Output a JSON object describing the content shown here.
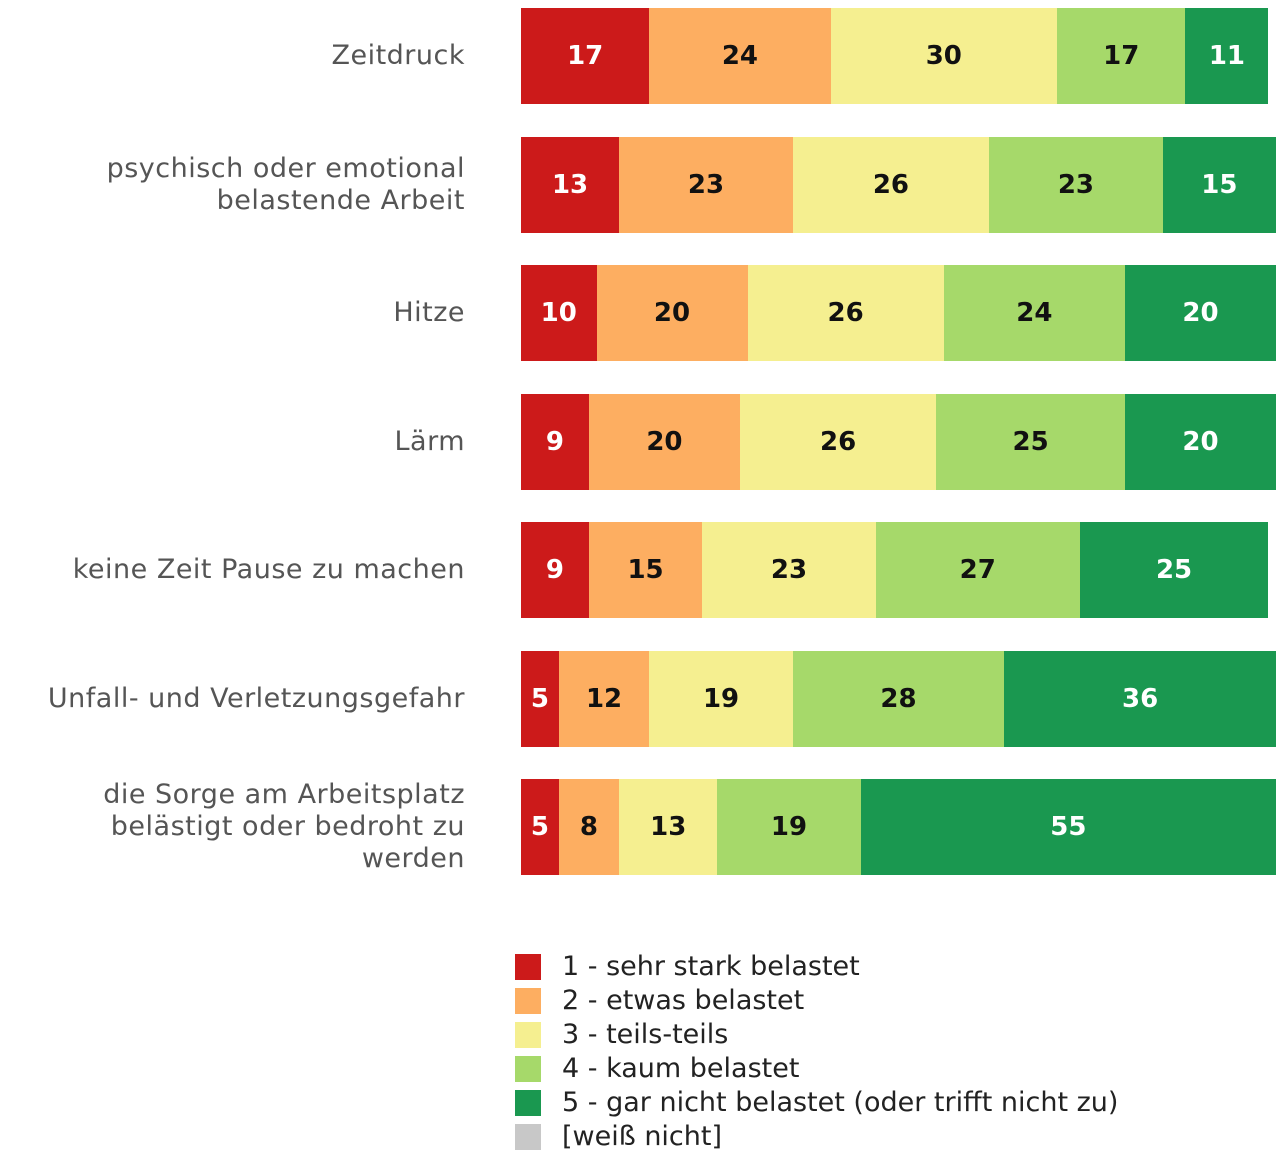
{
  "chart_data": {
    "type": "stacked_bar_horizontal",
    "categories": [
      "Zeitdruck",
      "psychisch oder emotional belastende Arbeit",
      "Hitze",
      "Lärm",
      "keine Zeit Pause zu machen",
      "Unfall- und Verletzungsgefahr",
      "die Sorge am Arbeitsplatz belästigt oder bedroht zu werden"
    ],
    "series": [
      {
        "name": "1 - sehr stark belastet",
        "color": "#cc1a1a",
        "values": [
          17,
          13,
          10,
          9,
          9,
          5,
          5
        ]
      },
      {
        "name": "2 - etwas belastet",
        "color": "#fdae61",
        "values": [
          24,
          23,
          20,
          20,
          15,
          12,
          8
        ]
      },
      {
        "name": "3 - teils-teils",
        "color": "#f5ef90",
        "values": [
          30,
          26,
          26,
          26,
          23,
          19,
          13
        ]
      },
      {
        "name": "4 - kaum belastet",
        "color": "#a6d96a",
        "values": [
          17,
          23,
          24,
          25,
          27,
          28,
          19
        ]
      },
      {
        "name": "5 - gar nicht belastet (oder trifft nicht zu)",
        "color": "#1a9850",
        "values": [
          11,
          15,
          20,
          20,
          25,
          36,
          55
        ]
      },
      {
        "name": "[weiß nicht]",
        "color": "#c8c8c8",
        "values": [
          null,
          null,
          null,
          null,
          null,
          null,
          null
        ]
      }
    ],
    "xlim": [
      0,
      100
    ]
  }
}
